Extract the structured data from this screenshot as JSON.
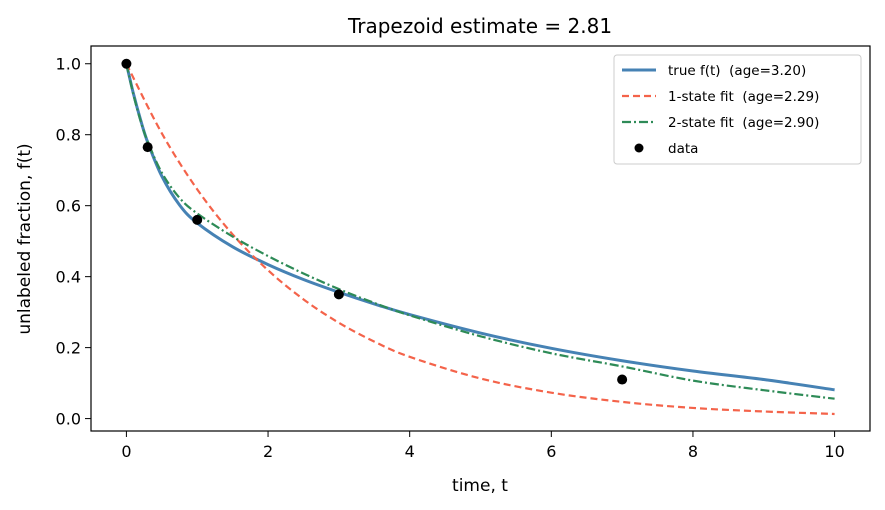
{
  "chart_data": {
    "type": "line",
    "title": "Trapezoid estimate = 2.81",
    "xlabel": "time, t",
    "ylabel": "unlabeled fraction, f(t)",
    "xlim": [
      -0.5,
      10.5
    ],
    "ylim": [
      -0.035,
      1.05
    ],
    "xticks": [
      0,
      2,
      4,
      6,
      8,
      10
    ],
    "xtick_labels": [
      "0",
      "2",
      "4",
      "6",
      "8",
      "10"
    ],
    "yticks": [
      0.0,
      0.2,
      0.4,
      0.6,
      0.8,
      1.0
    ],
    "ytick_labels": [
      "0.0",
      "0.2",
      "0.4",
      "0.6",
      "0.8",
      "1.0"
    ],
    "grid": false,
    "legend_position": "top-right",
    "series": [
      {
        "name": "true f(t)  (age=3.20)",
        "style": "solid",
        "color": "#4682b4",
        "x": [
          0,
          0.1,
          0.2,
          0.3,
          0.5,
          0.75,
          1,
          1.5,
          2,
          2.5,
          3,
          3.5,
          4,
          5,
          6,
          7,
          8,
          9,
          10
        ],
        "y": [
          1.0,
          0.915,
          0.842,
          0.779,
          0.683,
          0.602,
          0.551,
          0.484,
          0.434,
          0.392,
          0.356,
          0.323,
          0.293,
          0.241,
          0.198,
          0.163,
          0.134,
          0.11,
          0.081
        ]
      },
      {
        "name": "1-state fit  (age=2.29)",
        "style": "dashed",
        "color": "#f4634a",
        "x": [
          0,
          0.5,
          1,
          1.5,
          2,
          2.5,
          3,
          3.5,
          4,
          5,
          6,
          7,
          8,
          9,
          10
        ],
        "y": [
          1.0,
          0.804,
          0.646,
          0.519,
          0.418,
          0.336,
          0.27,
          0.217,
          0.174,
          0.113,
          0.073,
          0.047,
          0.03,
          0.02,
          0.013
        ]
      },
      {
        "name": "2-state fit  (age=2.90)",
        "style": "dashdot",
        "color": "#2e8b57",
        "x": [
          0,
          0.1,
          0.2,
          0.3,
          0.5,
          0.75,
          1,
          1.5,
          2,
          2.5,
          3,
          3.5,
          4,
          5,
          6,
          7,
          8,
          9,
          10
        ],
        "y": [
          1.0,
          0.912,
          0.839,
          0.781,
          0.693,
          0.622,
          0.578,
          0.513,
          0.458,
          0.409,
          0.365,
          0.326,
          0.291,
          0.232,
          0.184,
          0.147,
          0.107,
          0.08,
          0.056
        ]
      }
    ],
    "scatter": {
      "name": "data",
      "color": "#000000",
      "x": [
        0,
        0.3,
        1,
        3,
        7
      ],
      "y": [
        1.0,
        0.765,
        0.56,
        0.35,
        0.11
      ]
    }
  }
}
